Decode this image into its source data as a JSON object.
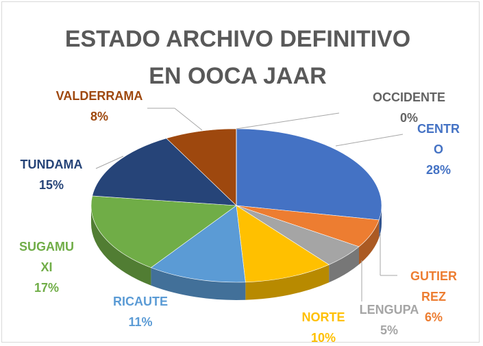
{
  "chart_data": {
    "type": "pie3d",
    "title": "ESTADO ARCHIVO DEFINITIVO EN OOCA JAAR",
    "categories": [
      "CENTRO",
      "GUTIERREZ",
      "LENGUPA",
      "NORTE",
      "RICAUTE",
      "SUGAMUXI",
      "TUNDAMA",
      "VALDERRAMA",
      "OCCIDENTE"
    ],
    "values": [
      28,
      6,
      5,
      10,
      11,
      17,
      15,
      8,
      0
    ],
    "value_labels": [
      "28%",
      "6%",
      "5%",
      "10%",
      "11%",
      "17%",
      "15%",
      "8%",
      "0%"
    ],
    "colors": [
      "#4472c4",
      "#ed7d31",
      "#a5a5a5",
      "#ffc000",
      "#5b9bd5",
      "#70ad47",
      "#264478",
      "#9e480e",
      "#636363"
    ]
  }
}
